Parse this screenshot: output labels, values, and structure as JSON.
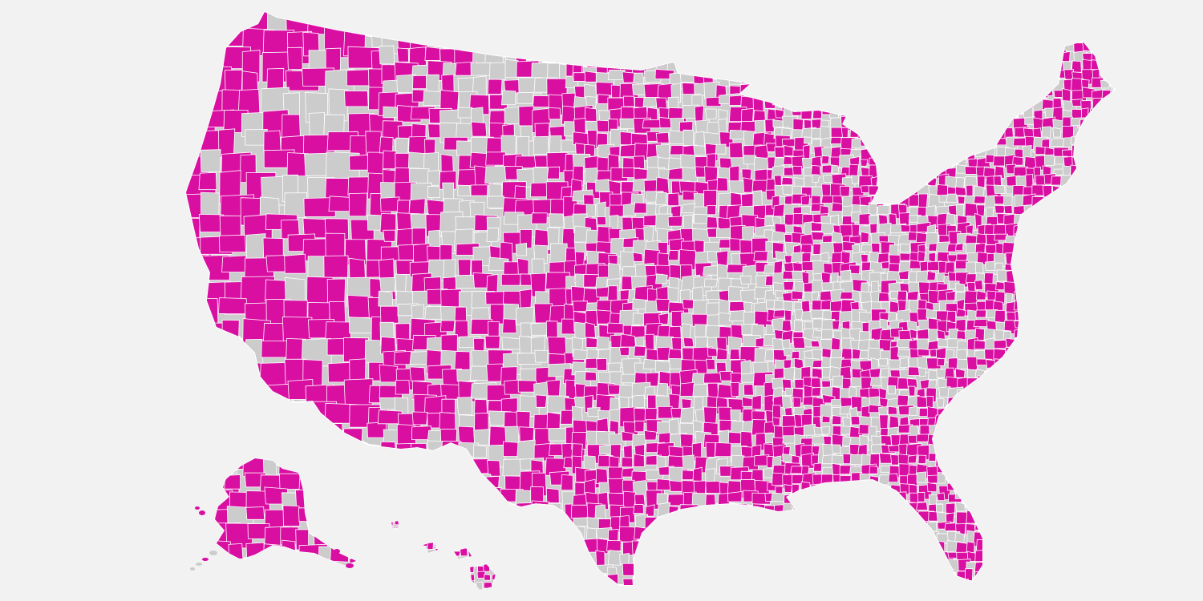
{
  "map": {
    "region_names": [
      "contiguous-us",
      "alaska",
      "hawaii"
    ],
    "colors": {
      "background": "#f2f2f2",
      "highlight": "#d90fa2",
      "base": "#cccccc",
      "border": "#ffffff"
    },
    "share_highlighted": 0.62
  }
}
